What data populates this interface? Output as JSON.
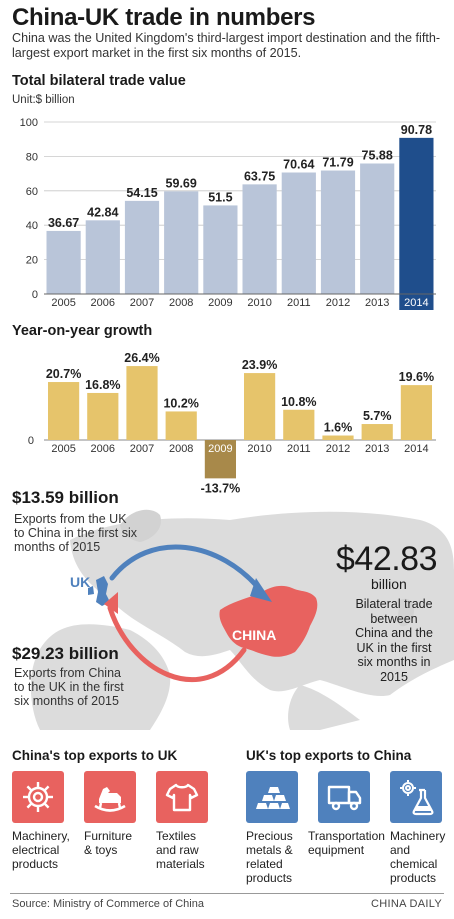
{
  "title": "China-UK trade in numbers",
  "subtitle": "China was the United Kingdom's third-largest import destination and the fifth-largest export market in the first six months of 2015.",
  "chart_data": [
    {
      "type": "bar",
      "title": "Total bilateral trade value",
      "unit": "Unit:$ billion",
      "categories": [
        "2005",
        "2006",
        "2007",
        "2008",
        "2009",
        "2010",
        "2011",
        "2012",
        "2013",
        "2014"
      ],
      "values": [
        36.67,
        42.84,
        54.15,
        59.69,
        51.5,
        63.75,
        70.64,
        71.79,
        75.88,
        90.78
      ],
      "value_labels": [
        "36.67",
        "42.84",
        "54.15",
        "59.69",
        "51.5",
        "63.75",
        "70.64",
        "71.79",
        "75.88",
        "90.78"
      ],
      "yticks": [
        "0",
        "20",
        "40",
        "60",
        "80",
        "100"
      ],
      "ylim": [
        0,
        100
      ],
      "grid": true,
      "colors": {
        "bar": "#b9c5d9",
        "highlight": "#1f4e8c",
        "grid": "#c8c8c8"
      }
    },
    {
      "type": "bar",
      "title": "Year-on-year growth",
      "categories": [
        "2005",
        "2006",
        "2007",
        "2008",
        "2009",
        "2010",
        "2011",
        "2012",
        "2013",
        "2014"
      ],
      "values": [
        20.7,
        16.8,
        26.4,
        10.2,
        -13.7,
        23.9,
        10.8,
        1.6,
        5.7,
        19.6
      ],
      "value_labels": [
        "20.7%",
        "16.8%",
        "26.4%",
        "10.2%",
        "-13.7%",
        "23.9%",
        "10.8%",
        "1.6%",
        "5.7%",
        "19.6%"
      ],
      "yticks": [
        "0"
      ],
      "colors": {
        "bar": "#e6c46b",
        "negative": "#a8894a"
      }
    }
  ],
  "map": {
    "uk_label": "UK",
    "china_label": "CHINA",
    "exports_uk": {
      "value": "$13.59 billion",
      "desc": [
        "Exports from the UK",
        "to China in the first six",
        "months of 2015"
      ]
    },
    "exports_china": {
      "value": "$29.23 billion",
      "desc": [
        "Exports from China",
        "to the UK in the first",
        "six months of 2015"
      ]
    },
    "total": {
      "value": "$42.83",
      "unit": "billion",
      "desc": [
        "Bilateral trade",
        "between",
        "China and the",
        "UK in the first",
        "six months in",
        "2015"
      ]
    },
    "colors": {
      "land": "#d9d9d9",
      "china": "#e8625f",
      "uk": "#4f81bd",
      "arrow_blue": "#4f81bd",
      "arrow_red": "#e8625f"
    }
  },
  "china_exports": {
    "title": "China's top exports to UK",
    "items": [
      {
        "icon": "gear-icon",
        "label": [
          "Machinery,",
          "electrical",
          "products"
        ]
      },
      {
        "icon": "rocking-horse-icon",
        "label": [
          "Furniture",
          "& toys"
        ]
      },
      {
        "icon": "tshirt-icon",
        "label": [
          "Textiles",
          "and raw",
          "materials"
        ]
      }
    ]
  },
  "uk_exports": {
    "title": "UK's top exports to China",
    "items": [
      {
        "icon": "gold-bars-icon",
        "label": [
          "Precious",
          "metals &",
          "related",
          "products"
        ]
      },
      {
        "icon": "truck-icon",
        "label": [
          "Transportation",
          "equipment"
        ]
      },
      {
        "icon": "gear-flask-icon",
        "label": [
          "Machinery",
          "and",
          "chemical",
          "products"
        ]
      }
    ]
  },
  "source": "Source: Ministry of Commerce of China",
  "credit": "CHINA DAILY"
}
